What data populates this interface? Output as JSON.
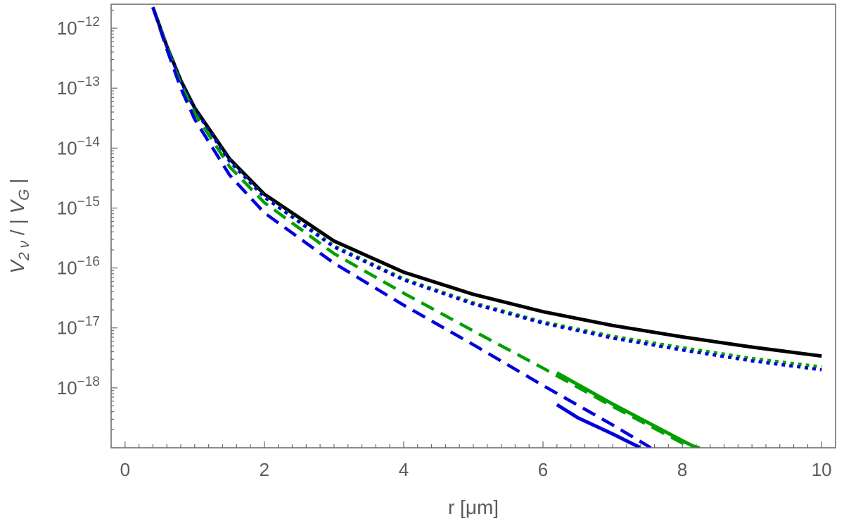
{
  "chart_data": {
    "type": "line",
    "title": "",
    "xlabel": "r [μm]",
    "ylabel_parts": {
      "v": "V",
      "sub2v": "2 ν",
      "sep": " / | ",
      "vg": "V",
      "subG": "G",
      "end": " |"
    },
    "x_scale": "linear",
    "y_scale": "log",
    "xlim": [
      -0.2,
      10.2
    ],
    "ylim_exp": [
      -19.0,
      -11.6
    ],
    "x_ticks": [
      0,
      2,
      4,
      6,
      8,
      10
    ],
    "y_tick_exponents": [
      -12,
      -13,
      -14,
      -15,
      -16,
      -17,
      -18
    ],
    "y_tick_base": "10",
    "grid": false,
    "legend": "none",
    "series": [
      {
        "color": "#000000",
        "style": "solid",
        "x": [
          0.4,
          0.6,
          0.8,
          1.0,
          1.5,
          2.0,
          3.0,
          4.0,
          5.0,
          6.0,
          7.0,
          8.0,
          9.0,
          10.0
        ],
        "y_exp": [
          -11.65,
          -12.3,
          -12.87,
          -13.33,
          -14.18,
          -14.77,
          -15.55,
          -16.07,
          -16.44,
          -16.73,
          -16.96,
          -17.15,
          -17.32,
          -17.47
        ]
      },
      {
        "color": "#00a000",
        "style": "dotted",
        "x": [
          0.4,
          0.6,
          0.8,
          1.0,
          1.5,
          2.0,
          3.0,
          4.0,
          5.0,
          6.0,
          7.0,
          8.0,
          9.0,
          10.0
        ],
        "y_exp": [
          -11.65,
          -12.3,
          -12.88,
          -13.35,
          -14.21,
          -14.81,
          -15.63,
          -16.18,
          -16.58,
          -16.9,
          -17.14,
          -17.33,
          -17.51,
          -17.65
        ]
      },
      {
        "color": "#0000dd",
        "style": "dotted",
        "x": [
          0.4,
          0.6,
          0.8,
          1.0,
          1.5,
          2.0,
          3.0,
          4.0,
          5.0,
          6.0,
          7.0,
          8.0,
          9.0,
          10.0
        ],
        "y_exp": [
          -11.65,
          -12.3,
          -12.88,
          -13.35,
          -14.22,
          -14.82,
          -15.65,
          -16.2,
          -16.6,
          -16.92,
          -17.17,
          -17.37,
          -17.55,
          -17.7
        ]
      },
      {
        "color": "#00a000",
        "style": "dashed",
        "x": [
          0.4,
          0.6,
          0.8,
          1.0,
          1.5,
          2.0,
          3.0,
          4.0,
          5.0,
          6.0,
          7.0,
          8.0,
          8.25
        ],
        "y_exp": [
          -11.65,
          -12.32,
          -12.93,
          -13.42,
          -14.31,
          -14.91,
          -15.76,
          -16.42,
          -17.05,
          -17.67,
          -18.31,
          -18.92,
          -19.0
        ]
      },
      {
        "color": "#0000dd",
        "style": "dashed",
        "x": [
          0.4,
          0.6,
          0.8,
          1.0,
          1.5,
          2.0,
          3.0,
          4.0,
          5.0,
          6.0,
          7.0,
          7.55
        ],
        "y_exp": [
          -11.65,
          -12.35,
          -13.0,
          -13.52,
          -14.45,
          -15.08,
          -15.92,
          -16.62,
          -17.28,
          -17.96,
          -18.62,
          -19.0
        ]
      },
      {
        "color": "#00a000",
        "style": "solid",
        "x": [
          6.2,
          7.0,
          8.0,
          8.2
        ],
        "y_exp": [
          -17.75,
          -18.27,
          -18.88,
          -19.0
        ]
      },
      {
        "color": "#0000dd",
        "style": "solid",
        "x": [
          6.2,
          6.5,
          7.0,
          7.4
        ],
        "y_exp": [
          -18.28,
          -18.5,
          -18.77,
          -19.0
        ]
      }
    ]
  }
}
